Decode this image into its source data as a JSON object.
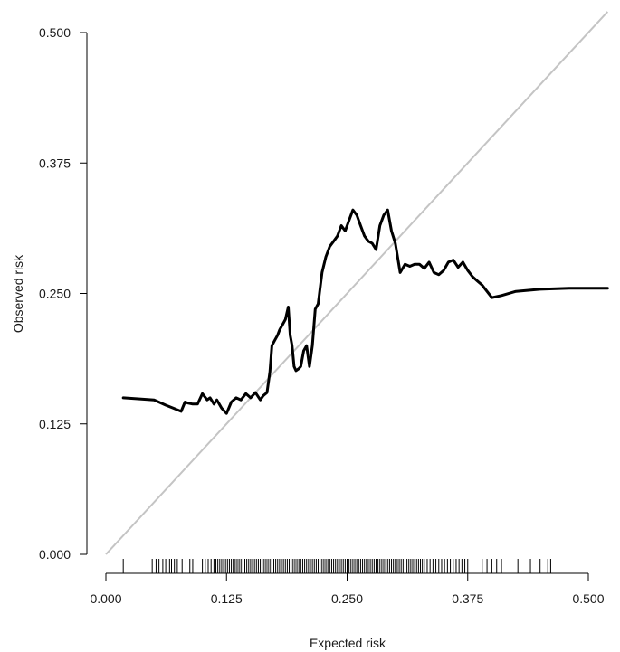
{
  "chart_data": {
    "type": "line",
    "title": "",
    "xlabel": "Expected risk",
    "ylabel": "Observed risk",
    "xlim": [
      0.0,
      0.52
    ],
    "ylim": [
      0.0,
      0.52
    ],
    "x_ticks": [
      "0.000",
      "0.125",
      "0.250",
      "0.375",
      "0.500"
    ],
    "y_ticks": [
      "0.000",
      "0.125",
      "0.250",
      "0.375",
      "0.500"
    ],
    "grid": false,
    "legend": "none",
    "colors": {
      "curve": "#000000",
      "reference": "#c4c4c4",
      "axis": "#000000"
    },
    "reference_line": {
      "x": [
        0.0,
        0.52
      ],
      "y": [
        0.0,
        0.52
      ]
    },
    "series": [
      {
        "x": [
          0.018,
          0.035,
          0.05,
          0.062,
          0.07,
          0.078,
          0.082,
          0.085,
          0.09,
          0.095,
          0.1,
          0.105,
          0.108,
          0.112,
          0.115,
          0.12,
          0.125,
          0.13,
          0.135,
          0.14,
          0.145,
          0.15,
          0.155,
          0.16,
          0.163,
          0.167,
          0.17,
          0.172,
          0.175,
          0.178,
          0.18,
          0.183,
          0.186,
          0.189,
          0.191,
          0.193,
          0.195,
          0.197,
          0.2,
          0.202,
          0.205,
          0.208,
          0.211,
          0.214,
          0.217,
          0.22,
          0.224,
          0.228,
          0.232,
          0.236,
          0.24,
          0.244,
          0.248,
          0.252,
          0.256,
          0.26,
          0.264,
          0.268,
          0.272,
          0.276,
          0.28,
          0.284,
          0.288,
          0.292,
          0.296,
          0.3,
          0.305,
          0.31,
          0.315,
          0.32,
          0.325,
          0.33,
          0.335,
          0.34,
          0.345,
          0.35,
          0.355,
          0.36,
          0.365,
          0.37,
          0.375,
          0.38,
          0.385,
          0.39,
          0.4,
          0.41,
          0.425,
          0.45,
          0.48,
          0.52
        ],
        "y": [
          0.15,
          0.149,
          0.148,
          0.143,
          0.14,
          0.137,
          0.146,
          0.145,
          0.144,
          0.144,
          0.154,
          0.148,
          0.15,
          0.144,
          0.148,
          0.14,
          0.135,
          0.146,
          0.15,
          0.148,
          0.154,
          0.15,
          0.155,
          0.148,
          0.152,
          0.155,
          0.175,
          0.2,
          0.205,
          0.21,
          0.215,
          0.22,
          0.225,
          0.237,
          0.21,
          0.2,
          0.18,
          0.176,
          0.178,
          0.18,
          0.195,
          0.2,
          0.18,
          0.2,
          0.235,
          0.24,
          0.27,
          0.285,
          0.295,
          0.3,
          0.305,
          0.315,
          0.31,
          0.32,
          0.33,
          0.325,
          0.315,
          0.305,
          0.3,
          0.298,
          0.292,
          0.315,
          0.325,
          0.33,
          0.31,
          0.298,
          0.27,
          0.278,
          0.276,
          0.278,
          0.278,
          0.274,
          0.28,
          0.27,
          0.268,
          0.272,
          0.28,
          0.282,
          0.275,
          0.28,
          0.272,
          0.266,
          0.262,
          0.258,
          0.246,
          0.248,
          0.252,
          0.254,
          0.255,
          0.255
        ]
      }
    ],
    "rug_x": [
      0.018,
      0.048,
      0.052,
      0.055,
      0.059,
      0.062,
      0.066,
      0.068,
      0.071,
      0.074,
      0.079,
      0.083,
      0.087,
      0.09,
      0.1,
      0.103,
      0.106,
      0.109,
      0.112,
      0.114,
      0.116,
      0.118,
      0.12,
      0.122,
      0.124,
      0.126,
      0.128,
      0.13,
      0.132,
      0.134,
      0.136,
      0.138,
      0.14,
      0.142,
      0.144,
      0.146,
      0.148,
      0.15,
      0.152,
      0.154,
      0.156,
      0.158,
      0.16,
      0.162,
      0.164,
      0.166,
      0.168,
      0.17,
      0.172,
      0.174,
      0.176,
      0.178,
      0.18,
      0.182,
      0.184,
      0.186,
      0.188,
      0.19,
      0.192,
      0.194,
      0.196,
      0.198,
      0.2,
      0.202,
      0.204,
      0.206,
      0.208,
      0.21,
      0.212,
      0.214,
      0.216,
      0.218,
      0.22,
      0.222,
      0.224,
      0.226,
      0.228,
      0.23,
      0.232,
      0.234,
      0.236,
      0.238,
      0.24,
      0.242,
      0.244,
      0.246,
      0.248,
      0.25,
      0.252,
      0.254,
      0.256,
      0.258,
      0.26,
      0.262,
      0.264,
      0.266,
      0.268,
      0.27,
      0.272,
      0.274,
      0.276,
      0.278,
      0.28,
      0.282,
      0.284,
      0.286,
      0.288,
      0.29,
      0.292,
      0.294,
      0.296,
      0.298,
      0.3,
      0.302,
      0.304,
      0.306,
      0.308,
      0.31,
      0.312,
      0.314,
      0.316,
      0.318,
      0.32,
      0.322,
      0.324,
      0.326,
      0.328,
      0.33,
      0.333,
      0.336,
      0.339,
      0.342,
      0.345,
      0.348,
      0.351,
      0.354,
      0.357,
      0.36,
      0.363,
      0.366,
      0.369,
      0.372,
      0.375,
      0.39,
      0.395,
      0.4,
      0.405,
      0.41,
      0.427,
      0.44,
      0.45,
      0.458,
      0.461
    ]
  }
}
